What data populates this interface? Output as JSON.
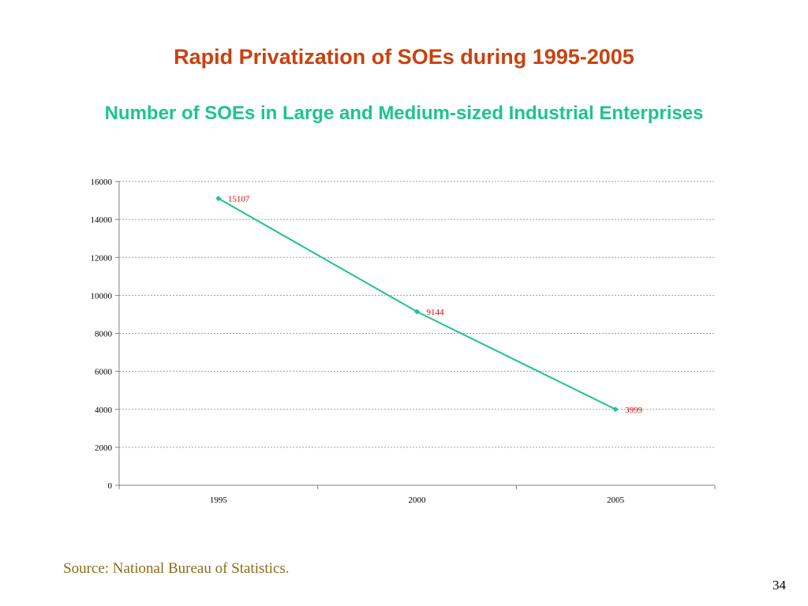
{
  "slide": {
    "title": "Rapid Privatization of SOEs during 1995-2005",
    "subtitle": "Number of SOEs in Large and Medium-sized Industrial Enterprises",
    "source": "Source: National Bureau of Statistics.",
    "page_number": "34"
  },
  "colors": {
    "title": "#c8420f",
    "subtitle": "#1cc48e",
    "source": "#8a6d1a",
    "series_line": "#1cc48e",
    "data_label": "#e00000",
    "grid": "#a0a0a0",
    "axis": "#808080"
  },
  "chart_data": {
    "type": "line",
    "categories": [
      "1995",
      "2000",
      "2005"
    ],
    "series": [
      {
        "values": [
          15107,
          9144,
          3999
        ],
        "data_labels": [
          "15107",
          "9144",
          "3999"
        ],
        "marker": "diamond"
      }
    ],
    "ylim": [
      0,
      16000
    ],
    "yticks": [
      "0",
      "2000",
      "4000",
      "6000",
      "8000",
      "10000",
      "12000",
      "14000",
      "16000"
    ],
    "ytick_values": [
      0,
      2000,
      4000,
      6000,
      8000,
      10000,
      12000,
      14000,
      16000
    ],
    "grid": "horizontal dashed",
    "legend": "none",
    "title": "",
    "xlabel": "",
    "ylabel": ""
  }
}
